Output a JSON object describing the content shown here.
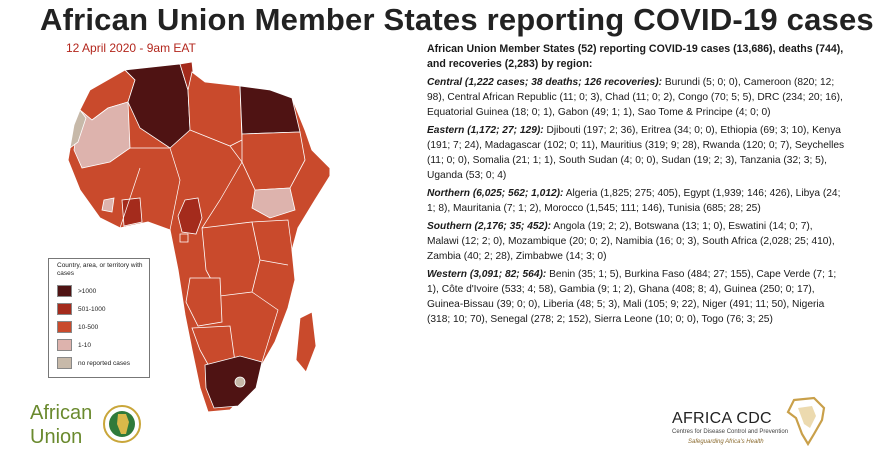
{
  "title": "African Union Member States reporting COVID-19 cases",
  "date": "12 April 2020 - 9am EAT",
  "colors": {
    "gt1000": "#4f1313",
    "r501_1000": "#a42b1c",
    "r10_500": "#c94a2c",
    "r1_10": "#ddb3ad",
    "none": "#c7b9a9"
  },
  "legend": {
    "title": "Country, area, or territory with cases",
    "items": [
      {
        "label": ">1000",
        "color": "#4f1313"
      },
      {
        "label": "501-1000",
        "color": "#a42b1c"
      },
      {
        "label": "10-500",
        "color": "#c94a2c"
      },
      {
        "label": "1-10",
        "color": "#ddb3ad"
      },
      {
        "label": "no reported cases",
        "color": "#c7b9a9"
      }
    ]
  },
  "summary": "African Union Member States (52) reporting COVID-19 cases (13,686), deaths (744), and recoveries (2,283) by region:",
  "regions": [
    {
      "name": "Central (1,222 cases; 38 deaths; 126 recoveries):",
      "text": " Burundi (5; 0; 0), Cameroon (820; 12; 98), Central African Republic (11; 0; 3), Chad (11; 0; 2), Congo (70; 5; 5), DRC (234; 20; 16), Equatorial Guinea (18; 0; 1), Gabon (49; 1; 1), Sao Tome & Principe (4; 0; 0)"
    },
    {
      "name": "Eastern (1,172; 27; 129):",
      "text": " Djibouti (197; 2; 36), Eritrea (34; 0; 0), Ethiopia (69; 3; 10), Kenya (191; 7; 24), Madagascar (102; 0; 11), Mauritius (319; 9; 28), Rwanda (120; 0; 7), Seychelles (11; 0; 0), Somalia (21; 1; 1), South Sudan (4; 0; 0), Sudan (19; 2; 3), Tanzania (32; 3; 5), Uganda (53; 0; 4)"
    },
    {
      "name": "Northern (6,025; 562; 1,012):",
      "text": " Algeria (1,825; 275; 405), Egypt (1,939; 146; 426), Libya (24; 1; 8), Mauritania (7; 1; 2), Morocco (1,545; 111; 146), Tunisia (685; 28; 25)"
    },
    {
      "name": "Southern (2,176; 35; 452):",
      "text": " Angola (19; 2; 2), Botswana (13; 1; 0), Eswatini (14; 0; 7), Malawi (12; 2; 0), Mozambique (20; 0; 2), Namibia (16; 0; 3), South Africa (2,028; 25; 410), Zambia (40; 2; 28), Zimbabwe (14; 3; 0)"
    },
    {
      "name": "Western (3,091; 82; 564):",
      "text": " Benin (35; 1; 5), Burkina Faso (484; 27; 155), Cape Verde (7; 1; 1), Côte d'Ivoire (533; 4; 58), Gambia (9; 1; 2), Ghana (408; 8; 4), Guinea (250; 0; 17), Guinea-Bissau (39; 0; 0), Liberia (48; 5; 3), Mali (105; 9; 22), Niger (491; 11; 50), Nigeria (318; 10; 70), Senegal (278; 2; 152), Sierra Leone (10; 0; 0), Togo (76; 3; 25)"
    }
  ],
  "logos": {
    "au_line1": "African",
    "au_line2": "Union",
    "cdc_name": "AFRICA CDC",
    "cdc_sub": "Centres for Disease Control and Prevention",
    "cdc_tag": "Safeguarding Africa's Health"
  }
}
